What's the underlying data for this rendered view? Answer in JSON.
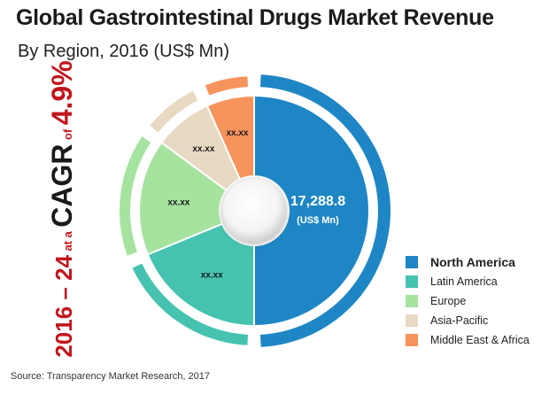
{
  "title": "Global Gastrointestinal Drugs Market Revenue",
  "subtitle": "By Region, 2016 (US$ Mn)",
  "cagr": {
    "years": "2016 – 24",
    "at_a": "at a",
    "label": "CAGR",
    "of": "of",
    "rate": "4.9%"
  },
  "source": "Source: Transparency Market Research, 2017",
  "chart_data": {
    "type": "pie",
    "variant": "donut",
    "title": "Global Gastrointestinal Drugs Market Revenue",
    "subtitle": "By Region, 2016 (US$ Mn)",
    "unit": "US$ Mn",
    "slices": [
      {
        "name": "North America",
        "value": 17288.8,
        "label": "17,288.8",
        "sublabel": "(US$ Mn)",
        "share": 0.5,
        "color": "#1e86c5"
      },
      {
        "name": "Latin America",
        "value": null,
        "label": "xx.xx",
        "share": 0.188,
        "color": "#45c3b0"
      },
      {
        "name": "Europe",
        "value": null,
        "label": "xx.xx",
        "share": 0.163,
        "color": "#a6e39f"
      },
      {
        "name": "Asia-Pacific",
        "value": null,
        "label": "xx.xx",
        "share": 0.082,
        "color": "#e8d9c3"
      },
      {
        "name": "Middle East & Africa",
        "value": null,
        "label": "xx.xx",
        "share": 0.067,
        "color": "#f7935c"
      }
    ],
    "legend_position": "bottom-right"
  }
}
